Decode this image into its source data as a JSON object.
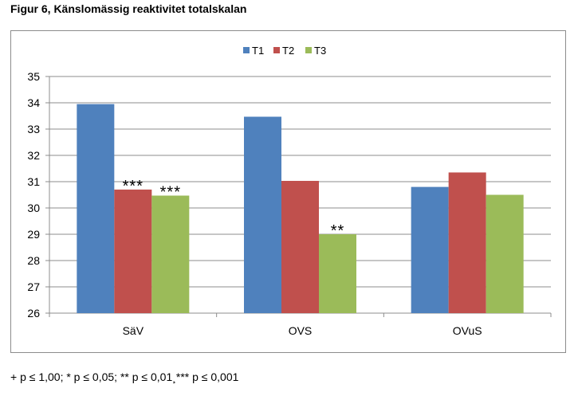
{
  "page": {
    "title": "Figur 6, Känslomässig reaktivitet totalskalan",
    "footnote": "+ p ≤ 1,00; * p ≤ 0,05; ** p ≤ 0,01¸*** p ≤ 0,001"
  },
  "chart_data": {
    "type": "bar",
    "title": "",
    "xlabel": "",
    "ylabel": "",
    "ylim": [
      26,
      35
    ],
    "ytick_step": 1,
    "grid": true,
    "legend_position": "top",
    "categories": [
      "SäV",
      "OVS",
      "OVuS"
    ],
    "series": [
      {
        "name": "T1",
        "color": "#4f81bd",
        "values": [
          33.95,
          33.47,
          30.8
        ]
      },
      {
        "name": "T2",
        "color": "#c0504d",
        "values": [
          30.7,
          31.03,
          31.35
        ]
      },
      {
        "name": "T3",
        "color": "#9bbb59",
        "values": [
          30.47,
          29.0,
          30.5
        ]
      }
    ],
    "annotations": [
      {
        "category": "SäV",
        "series": "T2",
        "text": "***"
      },
      {
        "category": "SäV",
        "series": "T3",
        "text": "***"
      },
      {
        "category": "OVS",
        "series": "T3",
        "text": "**"
      }
    ]
  }
}
